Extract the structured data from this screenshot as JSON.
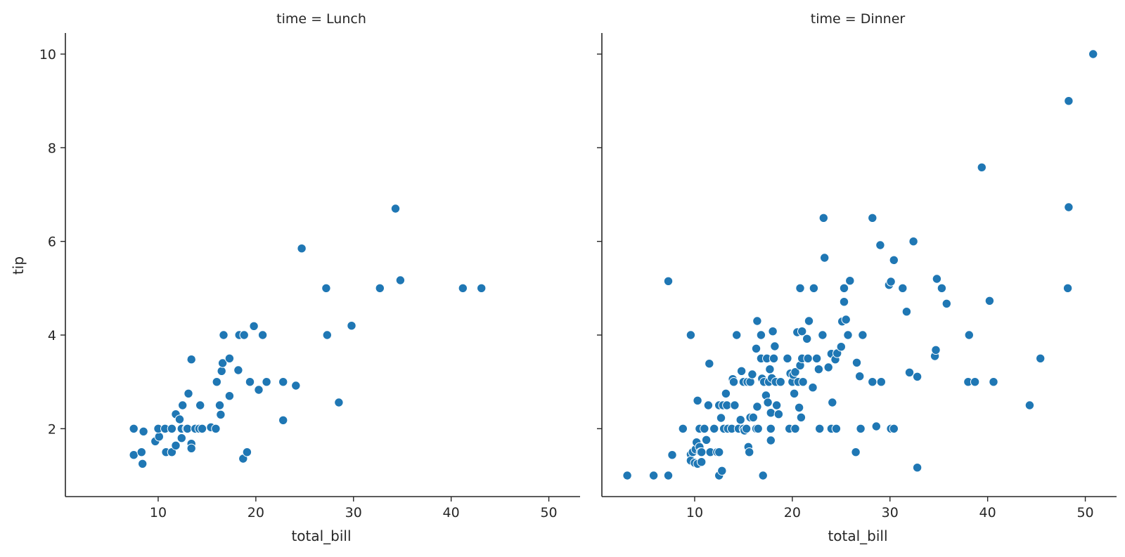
{
  "chart_data": {
    "type": "scatter",
    "layout": "facet-grid",
    "xlabel": "total_bill",
    "ylabel": "tip",
    "sharey": true,
    "grid": false,
    "marker_color": "#1f77b4",
    "marker_edge_color": "#ffffff",
    "xticks": [
      10,
      20,
      30,
      40,
      50
    ],
    "yticks": [
      2,
      4,
      6,
      8,
      10
    ],
    "panels": [
      {
        "title": "time = Lunch",
        "xlim": [
          0.5,
          53.2
        ],
        "ylim": [
          0.55,
          10.45
        ],
        "points": [
          [
            7.5,
            2.0
          ],
          [
            7.5,
            1.44
          ],
          [
            8.3,
            1.5
          ],
          [
            8.4,
            1.25
          ],
          [
            8.5,
            1.94
          ],
          [
            9.7,
            1.73
          ],
          [
            10.1,
            1.83
          ],
          [
            10.0,
            2.0
          ],
          [
            10.7,
            2.0
          ],
          [
            10.8,
            1.5
          ],
          [
            11.4,
            1.5
          ],
          [
            11.4,
            2.0
          ],
          [
            11.8,
            1.64
          ],
          [
            11.8,
            2.31
          ],
          [
            12.2,
            2.2
          ],
          [
            12.4,
            1.8
          ],
          [
            12.5,
            2.5
          ],
          [
            12.4,
            2.0
          ],
          [
            12.9,
            2.0
          ],
          [
            13.1,
            2.75
          ],
          [
            13.0,
            2.0
          ],
          [
            13.4,
            1.68
          ],
          [
            13.4,
            1.58
          ],
          [
            13.4,
            3.48
          ],
          [
            13.8,
            2.0
          ],
          [
            14.2,
            2.0
          ],
          [
            14.3,
            2.5
          ],
          [
            14.5,
            2.0
          ],
          [
            15.4,
            2.03
          ],
          [
            15.9,
            2.0
          ],
          [
            16.0,
            3.0
          ],
          [
            16.3,
            2.5
          ],
          [
            16.4,
            2.3
          ],
          [
            16.5,
            3.23
          ],
          [
            16.6,
            3.4
          ],
          [
            16.7,
            4.0
          ],
          [
            17.3,
            2.7
          ],
          [
            17.3,
            3.5
          ],
          [
            18.2,
            3.25
          ],
          [
            18.3,
            4.0
          ],
          [
            18.7,
            1.36
          ],
          [
            18.8,
            4.0
          ],
          [
            19.1,
            1.5
          ],
          [
            19.4,
            3.0
          ],
          [
            19.8,
            4.19
          ],
          [
            20.3,
            2.83
          ],
          [
            20.7,
            4.0
          ],
          [
            21.1,
            3.0
          ],
          [
            22.8,
            2.18
          ],
          [
            22.8,
            3.0
          ],
          [
            24.1,
            2.92
          ],
          [
            24.7,
            5.85
          ],
          [
            27.2,
            5.0
          ],
          [
            27.3,
            4.0
          ],
          [
            28.5,
            2.56
          ],
          [
            29.8,
            4.2
          ],
          [
            32.7,
            5.0
          ],
          [
            34.3,
            6.7
          ],
          [
            34.8,
            5.17
          ],
          [
            41.2,
            5.0
          ],
          [
            43.1,
            5.0
          ]
        ]
      },
      {
        "title": "time = Dinner",
        "xlim": [
          0.5,
          53.2
        ],
        "ylim": [
          0.55,
          10.45
        ],
        "points": [
          [
            3.1,
            1.0
          ],
          [
            5.8,
            1.0
          ],
          [
            7.3,
            1.0
          ],
          [
            7.3,
            5.15
          ],
          [
            7.7,
            1.44
          ],
          [
            8.8,
            2.0
          ],
          [
            9.6,
            4.0
          ],
          [
            9.6,
            1.45
          ],
          [
            9.6,
            1.32
          ],
          [
            9.8,
            1.5
          ],
          [
            10.0,
            1.27
          ],
          [
            10.1,
            1.56
          ],
          [
            10.2,
            1.71
          ],
          [
            10.3,
            2.6
          ],
          [
            10.3,
            1.25
          ],
          [
            10.5,
            1.61
          ],
          [
            10.5,
            2.0
          ],
          [
            10.6,
            1.5
          ],
          [
            10.7,
            1.5
          ],
          [
            10.7,
            1.29
          ],
          [
            11.0,
            2.0
          ],
          [
            11.2,
            1.76
          ],
          [
            11.4,
            2.5
          ],
          [
            11.5,
            3.39
          ],
          [
            11.6,
            1.5
          ],
          [
            12.0,
            2.0
          ],
          [
            12.3,
            1.5
          ],
          [
            12.5,
            1.5
          ],
          [
            12.5,
            2.5
          ],
          [
            12.5,
            1.0
          ],
          [
            12.7,
            2.23
          ],
          [
            12.8,
            1.1
          ],
          [
            12.9,
            2.5
          ],
          [
            13.0,
            2.0
          ],
          [
            13.2,
            2.75
          ],
          [
            13.3,
            2.5
          ],
          [
            13.4,
            2.0
          ],
          [
            13.8,
            2.0
          ],
          [
            13.9,
            3.06
          ],
          [
            14.0,
            3.0
          ],
          [
            14.1,
            2.5
          ],
          [
            14.3,
            4.0
          ],
          [
            14.5,
            2.0
          ],
          [
            14.7,
            2.19
          ],
          [
            14.8,
            3.23
          ],
          [
            15.0,
            3.0
          ],
          [
            15.0,
            2.0
          ],
          [
            15.1,
            1.96
          ],
          [
            15.3,
            2.0
          ],
          [
            15.4,
            3.0
          ],
          [
            15.5,
            1.61
          ],
          [
            15.6,
            1.5
          ],
          [
            15.7,
            3.0
          ],
          [
            15.7,
            2.24
          ],
          [
            15.9,
            3.16
          ],
          [
            16.0,
            2.24
          ],
          [
            16.3,
            2.0
          ],
          [
            16.3,
            3.71
          ],
          [
            16.4,
            4.3
          ],
          [
            16.4,
            2.47
          ],
          [
            16.5,
            2.0
          ],
          [
            16.8,
            3.5
          ],
          [
            16.8,
            4.0
          ],
          [
            16.9,
            3.07
          ],
          [
            17.0,
            1.0
          ],
          [
            17.1,
            3.0
          ],
          [
            17.3,
            2.71
          ],
          [
            17.4,
            3.5
          ],
          [
            17.5,
            2.56
          ],
          [
            17.6,
            3.0
          ],
          [
            17.7,
            3.27
          ],
          [
            17.8,
            2.34
          ],
          [
            17.8,
            1.75
          ],
          [
            17.8,
            2.0
          ],
          [
            17.9,
            3.08
          ],
          [
            18.0,
            4.08
          ],
          [
            18.1,
            3.5
          ],
          [
            18.2,
            3.76
          ],
          [
            18.3,
            3.0
          ],
          [
            18.4,
            2.5
          ],
          [
            18.6,
            2.31
          ],
          [
            18.8,
            3.0
          ],
          [
            19.5,
            3.5
          ],
          [
            19.7,
            2.0
          ],
          [
            19.8,
            3.18
          ],
          [
            20.0,
            3.0
          ],
          [
            20.1,
            3.15
          ],
          [
            20.2,
            2.75
          ],
          [
            20.3,
            3.21
          ],
          [
            20.3,
            2.0
          ],
          [
            20.5,
            4.06
          ],
          [
            20.6,
            3.0
          ],
          [
            20.7,
            2.45
          ],
          [
            20.8,
            3.35
          ],
          [
            20.8,
            5.0
          ],
          [
            20.9,
            2.24
          ],
          [
            21.0,
            3.5
          ],
          [
            21.0,
            4.08
          ],
          [
            21.1,
            3.0
          ],
          [
            21.5,
            3.92
          ],
          [
            21.6,
            3.5
          ],
          [
            21.7,
            4.3
          ],
          [
            22.1,
            2.88
          ],
          [
            22.2,
            5.0
          ],
          [
            22.5,
            3.5
          ],
          [
            22.7,
            3.27
          ],
          [
            22.8,
            2.0
          ],
          [
            23.1,
            4.0
          ],
          [
            23.2,
            6.5
          ],
          [
            23.3,
            5.65
          ],
          [
            23.7,
            3.31
          ],
          [
            24.0,
            3.6
          ],
          [
            24.1,
            2.56
          ],
          [
            24.0,
            2.0
          ],
          [
            24.4,
            3.48
          ],
          [
            24.5,
            2.0
          ],
          [
            24.6,
            3.61
          ],
          [
            25.0,
            3.75
          ],
          [
            25.1,
            4.29
          ],
          [
            25.3,
            4.71
          ],
          [
            25.3,
            5.0
          ],
          [
            25.5,
            4.33
          ],
          [
            25.7,
            4.0
          ],
          [
            25.9,
            5.16
          ],
          [
            26.5,
            1.5
          ],
          [
            26.6,
            3.41
          ],
          [
            26.9,
            3.12
          ],
          [
            27.0,
            2.0
          ],
          [
            27.2,
            4.0
          ],
          [
            28.2,
            6.5
          ],
          [
            28.2,
            3.0
          ],
          [
            28.6,
            2.05
          ],
          [
            29.0,
            5.92
          ],
          [
            29.1,
            3.0
          ],
          [
            29.9,
            5.07
          ],
          [
            30.1,
            2.0
          ],
          [
            30.1,
            5.14
          ],
          [
            30.4,
            2.0
          ],
          [
            30.4,
            5.6
          ],
          [
            31.3,
            5.0
          ],
          [
            31.7,
            4.5
          ],
          [
            32.0,
            3.2
          ],
          [
            32.4,
            6.0
          ],
          [
            32.8,
            3.11
          ],
          [
            32.8,
            1.17
          ],
          [
            34.6,
            3.55
          ],
          [
            34.7,
            3.68
          ],
          [
            34.8,
            5.2
          ],
          [
            35.3,
            5.0
          ],
          [
            35.8,
            4.67
          ],
          [
            38.0,
            3.0
          ],
          [
            38.1,
            4.0
          ],
          [
            38.7,
            3.0
          ],
          [
            39.4,
            7.58
          ],
          [
            40.2,
            4.73
          ],
          [
            40.6,
            3.0
          ],
          [
            44.3,
            2.5
          ],
          [
            45.4,
            3.5
          ],
          [
            48.2,
            5.0
          ],
          [
            48.3,
            6.73
          ],
          [
            48.3,
            9.0
          ],
          [
            50.8,
            10.0
          ]
        ]
      }
    ]
  }
}
